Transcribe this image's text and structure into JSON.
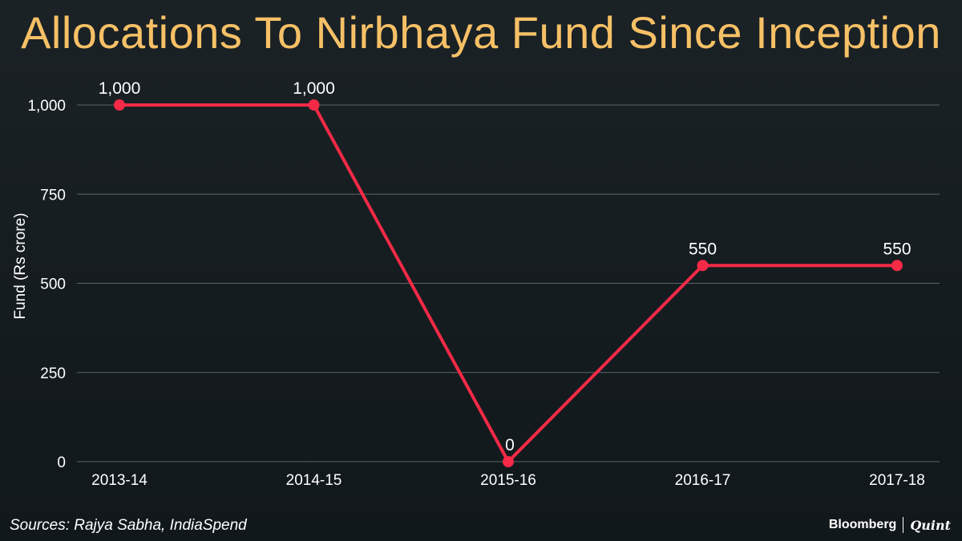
{
  "title": "Allocations To Nirbhaya Fund Since Inception",
  "source": "Sources: Rajya Sabha, IndiaSpend",
  "brand": {
    "primary": "Bloomberg",
    "secondary": "Quint"
  },
  "colors": {
    "line": "#f42a46",
    "title": "#f6c066",
    "grid": "#5c6468",
    "text": "#ffffff"
  },
  "chart_data": {
    "type": "line",
    "title": "Allocations To Nirbhaya Fund Since Inception",
    "xlabel": "",
    "ylabel": "Fund (Rs crore)",
    "categories": [
      "2013-14",
      "2014-15",
      "2015-16",
      "2016-17",
      "2017-18"
    ],
    "series": [
      {
        "values": [
          1000,
          1000,
          0,
          550,
          550
        ]
      }
    ],
    "data_labels": [
      "1,000",
      "1,000",
      "0",
      "550",
      "550"
    ],
    "ylim": [
      0,
      1000
    ],
    "yticks": [
      0,
      250,
      500,
      750,
      1000
    ],
    "ytick_labels": [
      "0",
      "250",
      "500",
      "750",
      "1,000"
    ],
    "grid": true,
    "legend": "none"
  }
}
